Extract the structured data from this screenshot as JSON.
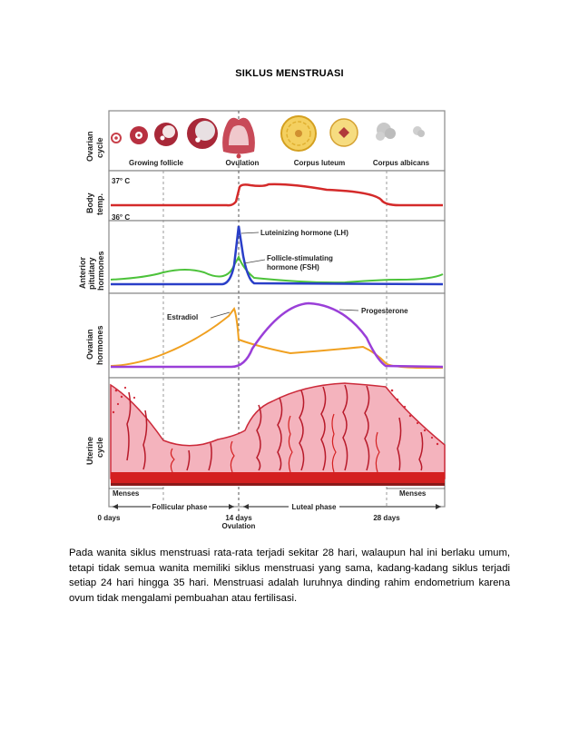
{
  "document": {
    "title": "SIKLUS MENSTRUASI",
    "paragraph": "Pada wanita siklus menstruasi rata-rata terjadi sekitar 28 hari, walaupun hal ini berlaku umum, tetapi tidak semua wanita memiliki siklus menstruasi yang sama, kadang-kadang siklus terjadi setiap 24 hari hingga 35 hari. Menstruasi adalah luruhnya dinding rahim endometrium karena ovum tidak mengalami pembuahan atau fertilisasi."
  },
  "figure": {
    "rows": {
      "ovarian_cycle": [
        "Ovarian",
        "cycle"
      ],
      "body_temp": [
        "Body",
        "temp."
      ],
      "pituitary": [
        "Anterior",
        "pituitary",
        "hormones"
      ],
      "ovarian_hormones": [
        "Ovarian",
        "hormones"
      ],
      "uterine": [
        "Uterine",
        "cycle"
      ]
    },
    "stages": {
      "growing_follicle": "Growing follicle",
      "ovulation": "Ovulation",
      "corpus_luteum": "Corpus luteum",
      "corpus_albicans": "Corpus albicans"
    },
    "temps": {
      "high": "37° C",
      "low": "36° C"
    },
    "hormones": {
      "lh": "Luteinizing hormone (LH)",
      "fsh_1": "Follicle-stimulating",
      "fsh_2": "hormone (FSH)",
      "estradiol": "Estradiol",
      "progesterone": "Progesterone"
    },
    "phases": {
      "menses_left": "Menses",
      "menses_right": "Menses",
      "follicular": "Follicular phase",
      "luteal": "Luteal phase"
    },
    "days": {
      "d0": "0 days",
      "d14": "14 days",
      "ovulation": "Ovulation",
      "d28": "28 days"
    },
    "colors": {
      "temp": "#d42a2a",
      "lh": "#2a3fc8",
      "fsh": "#4cc23a",
      "estradiol": "#f0a020",
      "progesterone": "#9a3fd8",
      "endometrium": "#f4b3bd",
      "vessel": "#d42020"
    }
  }
}
